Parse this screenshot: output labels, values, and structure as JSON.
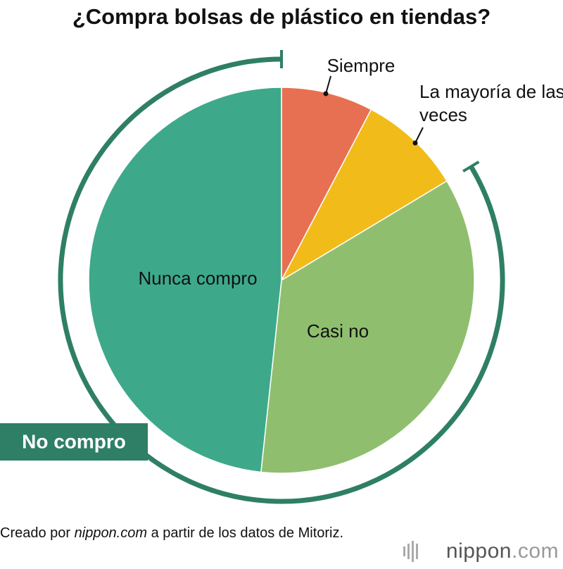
{
  "chart_data": {
    "type": "pie",
    "title": "¿Compra bolsas de plástico en tiendas?",
    "categories": [
      "Siempre",
      "La mayoría de las veces",
      "Casi no",
      "Nunca compro"
    ],
    "values": [
      7.7,
      8.7,
      35.3,
      48.3
    ],
    "colors": [
      "#e87052",
      "#f1bc19",
      "#8fbf6e",
      "#3da98a"
    ],
    "annotation": "No compro",
    "annotation_color": "#2e7f66",
    "source": [
      "Creado por ",
      "nippon.com",
      " a partir de los datos de Mitoriz."
    ],
    "logo": [
      "nippon",
      ".com"
    ]
  }
}
